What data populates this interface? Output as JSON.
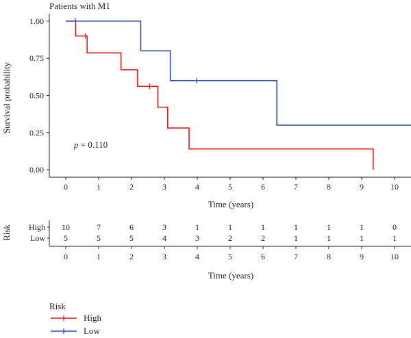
{
  "chart_data": {
    "type": "line",
    "title": "Patients with M1",
    "xlabel": "Time (years)",
    "ylabel": "Survival probability",
    "xlim": [
      -0.5,
      10.5
    ],
    "ylim": [
      -0.05,
      1.05
    ],
    "x_ticks": [
      0,
      1,
      2,
      3,
      4,
      5,
      6,
      7,
      8,
      9,
      10
    ],
    "y_ticks": [
      "0.00",
      "0.25",
      "0.50",
      "0.75",
      "1.00"
    ],
    "pvalue_prefix": "p",
    "pvalue_text": " = 0.110",
    "legend_title": "Risk",
    "legend_position": "bottom-left",
    "series": [
      {
        "name": "High",
        "color": "#e31a1c",
        "steps": [
          [
            0,
            1.0
          ],
          [
            0.3,
            0.9
          ],
          [
            0.65,
            0.786
          ],
          [
            1.68,
            0.673
          ],
          [
            2.18,
            0.561
          ],
          [
            2.8,
            0.421
          ],
          [
            3.1,
            0.281
          ],
          [
            3.75,
            0.14
          ],
          [
            9.35,
            0.0
          ]
        ],
        "end_x": 9.35,
        "censor": [
          [
            0.6,
            0.9
          ],
          [
            2.55,
            0.561
          ]
        ]
      },
      {
        "name": "Low",
        "color": "#2c4fa3",
        "steps": [
          [
            0,
            1.0
          ],
          [
            2.28,
            0.8
          ],
          [
            3.18,
            0.6
          ],
          [
            6.42,
            0.3
          ]
        ],
        "end_x": 10.5,
        "censor": [
          [
            0.3,
            1.0
          ],
          [
            3.98,
            0.6
          ]
        ]
      }
    ],
    "risk_table": {
      "title": "Risk",
      "xlabel": "Time (years)",
      "times": [
        0,
        1,
        2,
        3,
        4,
        5,
        6,
        7,
        8,
        9,
        10
      ],
      "rows": [
        {
          "name": "High",
          "counts": [
            "10",
            "7",
            "6",
            "3",
            "1",
            "1",
            "1",
            "1",
            "1",
            "1",
            "0"
          ]
        },
        {
          "name": "Low",
          "counts": [
            "5",
            "5",
            "5",
            "4",
            "3",
            "2",
            "2",
            "1",
            "1",
            "1",
            "1"
          ]
        }
      ]
    }
  }
}
